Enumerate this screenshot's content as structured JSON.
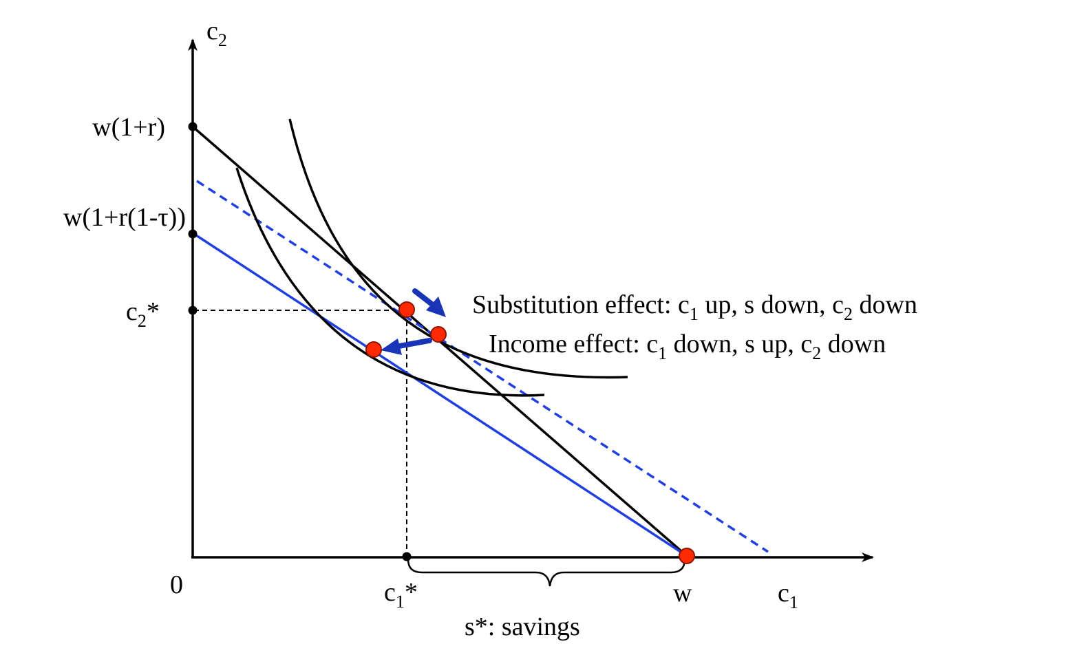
{
  "axes": {
    "x_label": "c",
    "x_label_sub": "1",
    "y_label": "c",
    "y_label_sub": "2",
    "origin_label": "0"
  },
  "y_ticks": {
    "w_1_plus_r": "w(1+r)",
    "w_after_tax": "w(1+r(1-τ))",
    "c2_star_main": "c",
    "c2_star_sub": "2",
    "c2_star_suffix": "*"
  },
  "x_ticks": {
    "c1_star_main": "c",
    "c1_star_sub": "1",
    "c1_star_suffix": "*",
    "w": "w"
  },
  "savings_label": "s*: savings",
  "substitution": {
    "prefix": "Substitution effect: c",
    "sub1": "1",
    "middle": " up, s down, c",
    "sub2": "2",
    "suffix": " down"
  },
  "income": {
    "prefix": "Income effect: c",
    "sub1": "1",
    "middle": " down, s up, c",
    "sub2": "2",
    "suffix": " down"
  },
  "colors": {
    "axis": "#000000",
    "original_budget": "#000000",
    "taxed_budget": "#1f3fe0",
    "compensated_budget": "#1f3fe0",
    "indifference_curve": "#000000",
    "point_fill": "#ff2a00",
    "point_stroke": "#8a1500",
    "arrow": "#1a34b8"
  }
}
